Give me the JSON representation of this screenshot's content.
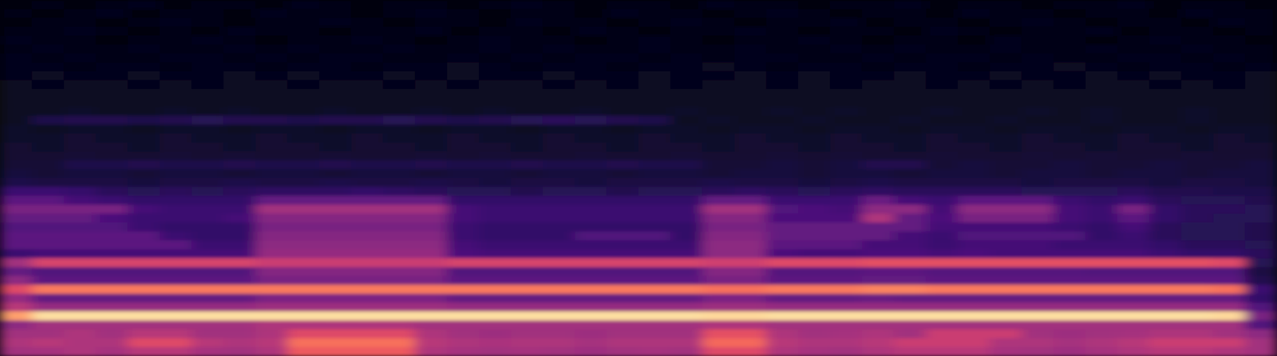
{
  "chart_data": {
    "type": "heatmap",
    "tick_labels": false,
    "zlim": [
      0,
      100
    ],
    "cells": [
      [
        3,
        4,
        3,
        4,
        5,
        3,
        4,
        4,
        3,
        5,
        4,
        3,
        4,
        4,
        3,
        4,
        5,
        4,
        3,
        4,
        4,
        3,
        5,
        4,
        4,
        3,
        4,
        4,
        5,
        3,
        4,
        4,
        3,
        4,
        4,
        5,
        3,
        4,
        4,
        3
      ],
      [
        4,
        3,
        4,
        5,
        3,
        4,
        4,
        3,
        5,
        4,
        4,
        3,
        4,
        5,
        4,
        3,
        4,
        4,
        3,
        5,
        4,
        4,
        3,
        4,
        5,
        4,
        3,
        4,
        4,
        3,
        5,
        4,
        4,
        3,
        4,
        4,
        3,
        5,
        4,
        4
      ],
      [
        3,
        4,
        4,
        3,
        4,
        5,
        4,
        3,
        4,
        4,
        5,
        4,
        3,
        4,
        4,
        3,
        5,
        4,
        4,
        3,
        4,
        5,
        4,
        3,
        4,
        4,
        5,
        3,
        4,
        4,
        3,
        4,
        5,
        4,
        3,
        4,
        4,
        3,
        5,
        4
      ],
      [
        4,
        4,
        5,
        4,
        3,
        4,
        3,
        5,
        4,
        4,
        3,
        4,
        4,
        5,
        3,
        4,
        4,
        3,
        5,
        4,
        3,
        4,
        4,
        5,
        4,
        3,
        4,
        4,
        3,
        5,
        4,
        3,
        4,
        4,
        5,
        3,
        4,
        4,
        3,
        4
      ],
      [
        5,
        4,
        4,
        3,
        4,
        4,
        5,
        4,
        3,
        4,
        4,
        5,
        4,
        3,
        4,
        5,
        4,
        4,
        3,
        4,
        5,
        4,
        3,
        4,
        4,
        5,
        4,
        3,
        4,
        4,
        3,
        5,
        4,
        4,
        3,
        4,
        5,
        4,
        4,
        3
      ],
      [
        4,
        5,
        4,
        4,
        5,
        4,
        4,
        5,
        4,
        5,
        4,
        4,
        5,
        4,
        4,
        5,
        4,
        5,
        4,
        4,
        5,
        4,
        4,
        5,
        4,
        4,
        5,
        4,
        5,
        4,
        4,
        5,
        4,
        4,
        5,
        4,
        4,
        5,
        4,
        4
      ],
      [
        5,
        4,
        5,
        4,
        4,
        5,
        5,
        4,
        5,
        4,
        5,
        5,
        4,
        4,
        5,
        4,
        5,
        4,
        5,
        5,
        4,
        5,
        4,
        5,
        5,
        4,
        4,
        5,
        4,
        5,
        5,
        4,
        5,
        4,
        4,
        5,
        5,
        4,
        5,
        4
      ],
      [
        5,
        5,
        4,
        5,
        5,
        4,
        5,
        5,
        4,
        5,
        5,
        4,
        5,
        5,
        6,
        5,
        4,
        5,
        5,
        4,
        5,
        5,
        6,
        5,
        4,
        5,
        5,
        4,
        5,
        5,
        4,
        5,
        5,
        6,
        5,
        4,
        5,
        5,
        4,
        5
      ],
      [
        5,
        6,
        5,
        5,
        6,
        5,
        5,
        6,
        5,
        6,
        5,
        5,
        6,
        5,
        6,
        5,
        5,
        6,
        5,
        5,
        6,
        5,
        5,
        6,
        5,
        6,
        5,
        5,
        6,
        5,
        5,
        6,
        5,
        5,
        6,
        5,
        6,
        5,
        5,
        6
      ],
      [
        6,
        5,
        6,
        6,
        5,
        6,
        5,
        6,
        6,
        5,
        6,
        6,
        5,
        6,
        5,
        6,
        6,
        5,
        6,
        5,
        6,
        5,
        6,
        6,
        5,
        6,
        5,
        6,
        6,
        5,
        6,
        5,
        6,
        5,
        6,
        6,
        5,
        6,
        5,
        6
      ],
      [
        6,
        6,
        7,
        6,
        6,
        7,
        6,
        6,
        7,
        6,
        7,
        6,
        6,
        7,
        6,
        6,
        7,
        6,
        7,
        6,
        6,
        7,
        6,
        6,
        7,
        6,
        7,
        6,
        6,
        7,
        6,
        6,
        7,
        6,
        7,
        6,
        6,
        7,
        6,
        6
      ],
      [
        7,
        6,
        7,
        7,
        6,
        7,
        7,
        6,
        7,
        7,
        6,
        7,
        7,
        6,
        7,
        7,
        6,
        7,
        7,
        6,
        7,
        7,
        6,
        7,
        7,
        6,
        7,
        7,
        6,
        7,
        7,
        6,
        7,
        7,
        6,
        7,
        7,
        6,
        7,
        7
      ],
      [
        7,
        7,
        8,
        7,
        7,
        8,
        7,
        8,
        7,
        7,
        8,
        7,
        7,
        8,
        7,
        8,
        7,
        7,
        8,
        7,
        7,
        8,
        7,
        7,
        8,
        7,
        8,
        7,
        7,
        8,
        7,
        7,
        8,
        7,
        8,
        7,
        7,
        8,
        7,
        7
      ],
      [
        7,
        13,
        14,
        14,
        13,
        14,
        15,
        14,
        14,
        13,
        14,
        14,
        15,
        14,
        13,
        14,
        15,
        16,
        15,
        14,
        13,
        7,
        8,
        7,
        7,
        8,
        7,
        7,
        8,
        7,
        7,
        8,
        7,
        7,
        8,
        7,
        7,
        8,
        7,
        7
      ],
      [
        8,
        7,
        8,
        8,
        7,
        8,
        8,
        7,
        8,
        8,
        7,
        8,
        8,
        7,
        8,
        8,
        7,
        8,
        8,
        7,
        8,
        8,
        7,
        8,
        8,
        7,
        8,
        8,
        7,
        8,
        8,
        7,
        8,
        8,
        7,
        8,
        8,
        7,
        8,
        8
      ],
      [
        8,
        8,
        9,
        8,
        8,
        9,
        8,
        8,
        9,
        8,
        8,
        9,
        8,
        8,
        9,
        8,
        8,
        9,
        8,
        8,
        9,
        8,
        8,
        9,
        8,
        8,
        9,
        8,
        8,
        9,
        8,
        8,
        9,
        8,
        8,
        9,
        8,
        8,
        9,
        8
      ],
      [
        9,
        8,
        9,
        9,
        8,
        9,
        9,
        8,
        9,
        9,
        8,
        9,
        9,
        8,
        9,
        9,
        8,
        9,
        9,
        8,
        9,
        9,
        8,
        9,
        9,
        8,
        9,
        9,
        8,
        9,
        9,
        8,
        9,
        9,
        8,
        9,
        9,
        8,
        9,
        9
      ],
      [
        9,
        9,
        10,
        9,
        9,
        10,
        9,
        10,
        9,
        9,
        10,
        9,
        9,
        10,
        9,
        10,
        9,
        9,
        10,
        9,
        9,
        10,
        9,
        9,
        10,
        9,
        10,
        9,
        9,
        10,
        9,
        9,
        10,
        9,
        10,
        9,
        9,
        10,
        9,
        9
      ],
      [
        10,
        10,
        13,
        13,
        14,
        13,
        13,
        14,
        13,
        13,
        14,
        13,
        13,
        14,
        13,
        13,
        14,
        13,
        13,
        14,
        13,
        13,
        10,
        10,
        11,
        10,
        11,
        14,
        14,
        10,
        11,
        10,
        10,
        11,
        10,
        10,
        11,
        10,
        10,
        11
      ],
      [
        11,
        10,
        11,
        11,
        10,
        11,
        11,
        10,
        11,
        11,
        10,
        11,
        11,
        10,
        11,
        11,
        10,
        11,
        11,
        10,
        11,
        11,
        10,
        11,
        11,
        10,
        11,
        11,
        10,
        11,
        11,
        10,
        11,
        11,
        10,
        11,
        11,
        10,
        11,
        11
      ],
      [
        13,
        12,
        12,
        12,
        11,
        12,
        12,
        13,
        12,
        12,
        13,
        12,
        12,
        13,
        12,
        11,
        12,
        12,
        11,
        12,
        12,
        12,
        13,
        12,
        12,
        11,
        12,
        13,
        12,
        12,
        12,
        12,
        11,
        12,
        12,
        12,
        11,
        12,
        12,
        11
      ],
      [
        20,
        20,
        19,
        16,
        15,
        16,
        15,
        16,
        17,
        17,
        17,
        18,
        17,
        16,
        15,
        15,
        14,
        15,
        15,
        14,
        15,
        15,
        16,
        17,
        16,
        15,
        16,
        17,
        16,
        16,
        16,
        16,
        15,
        15,
        15,
        16,
        14,
        14,
        13,
        13
      ],
      [
        28,
        28,
        22,
        20,
        18,
        18,
        18,
        18,
        30,
        30,
        30,
        30,
        30,
        30,
        18,
        18,
        18,
        18,
        18,
        18,
        18,
        18,
        30,
        30,
        20,
        20,
        20,
        32,
        22,
        20,
        28,
        28,
        28,
        20,
        18,
        20,
        16,
        15,
        15,
        14
      ],
      [
        35,
        35,
        35,
        35,
        22,
        20,
        20,
        20,
        45,
        45,
        45,
        45,
        45,
        45,
        22,
        20,
        20,
        20,
        20,
        20,
        20,
        20,
        45,
        45,
        25,
        24,
        22,
        40,
        40,
        22,
        40,
        40,
        40,
        22,
        20,
        35,
        18,
        16,
        16,
        15
      ],
      [
        30,
        30,
        30,
        24,
        20,
        20,
        20,
        22,
        38,
        38,
        38,
        38,
        38,
        38,
        22,
        20,
        20,
        20,
        20,
        20,
        20,
        20,
        38,
        38,
        24,
        24,
        24,
        48,
        30,
        24,
        35,
        35,
        35,
        22,
        20,
        28,
        18,
        16,
        15,
        15
      ],
      [
        25,
        25,
        25,
        25,
        20,
        18,
        18,
        18,
        35,
        35,
        35,
        35,
        35,
        35,
        20,
        18,
        18,
        18,
        18,
        18,
        18,
        18,
        35,
        35,
        30,
        30,
        30,
        30,
        30,
        22,
        22,
        22,
        22,
        20,
        18,
        22,
        16,
        15,
        15,
        14
      ],
      [
        28,
        28,
        28,
        28,
        28,
        20,
        18,
        18,
        38,
        38,
        38,
        38,
        38,
        38,
        20,
        18,
        18,
        18,
        25,
        25,
        25,
        18,
        38,
        38,
        30,
        30,
        30,
        30,
        22,
        20,
        25,
        25,
        25,
        25,
        18,
        20,
        16,
        15,
        15,
        14
      ],
      [
        28,
        28,
        28,
        28,
        28,
        28,
        20,
        20,
        40,
        40,
        40,
        40,
        40,
        40,
        22,
        20,
        20,
        20,
        20,
        20,
        20,
        20,
        40,
        40,
        28,
        28,
        28,
        22,
        22,
        20,
        22,
        22,
        22,
        20,
        20,
        20,
        18,
        16,
        16,
        15
      ],
      [
        20,
        22,
        22,
        22,
        22,
        22,
        22,
        22,
        42,
        42,
        42,
        42,
        42,
        42,
        24,
        22,
        22,
        22,
        22,
        22,
        22,
        22,
        40,
        40,
        24,
        22,
        22,
        24,
        24,
        22,
        24,
        22,
        22,
        22,
        22,
        22,
        20,
        18,
        18,
        16
      ],
      [
        45,
        58,
        58,
        58,
        58,
        58,
        58,
        58,
        55,
        55,
        55,
        55,
        55,
        55,
        58,
        58,
        58,
        58,
        58,
        58,
        58,
        58,
        56,
        56,
        60,
        60,
        60,
        62,
        62,
        62,
        62,
        62,
        62,
        62,
        62,
        62,
        62,
        62,
        60,
        15
      ],
      [
        30,
        25,
        25,
        25,
        25,
        25,
        25,
        25,
        38,
        38,
        38,
        38,
        38,
        38,
        25,
        25,
        25,
        25,
        25,
        25,
        25,
        25,
        38,
        38,
        26,
        26,
        26,
        28,
        28,
        26,
        26,
        26,
        26,
        26,
        25,
        25,
        25,
        25,
        25,
        12
      ],
      [
        40,
        28,
        28,
        28,
        28,
        28,
        28,
        28,
        35,
        35,
        35,
        35,
        35,
        35,
        28,
        28,
        28,
        28,
        28,
        28,
        28,
        28,
        35,
        35,
        28,
        28,
        28,
        30,
        30,
        28,
        28,
        28,
        28,
        28,
        28,
        28,
        28,
        28,
        28,
        14
      ],
      [
        60,
        72,
        72,
        72,
        72,
        72,
        72,
        72,
        72,
        72,
        72,
        72,
        72,
        72,
        72,
        72,
        72,
        72,
        72,
        72,
        72,
        72,
        70,
        70,
        72,
        72,
        72,
        74,
        74,
        72,
        72,
        72,
        72,
        72,
        72,
        72,
        72,
        72,
        70,
        20
      ],
      [
        42,
        30,
        30,
        30,
        30,
        30,
        30,
        30,
        36,
        36,
        36,
        36,
        36,
        36,
        30,
        30,
        30,
        30,
        30,
        30,
        30,
        30,
        36,
        36,
        30,
        30,
        30,
        32,
        30,
        30,
        30,
        30,
        30,
        30,
        30,
        30,
        30,
        30,
        30,
        18
      ],
      [
        50,
        42,
        42,
        42,
        42,
        42,
        42,
        42,
        44,
        44,
        44,
        44,
        44,
        44,
        42,
        42,
        42,
        42,
        42,
        42,
        42,
        42,
        44,
        44,
        42,
        42,
        42,
        42,
        42,
        42,
        42,
        42,
        42,
        42,
        42,
        42,
        42,
        42,
        42,
        25
      ],
      [
        80,
        93,
        93,
        93,
        93,
        93,
        93,
        93,
        93,
        93,
        93,
        93,
        93,
        93,
        93,
        93,
        93,
        93,
        93,
        93,
        93,
        93,
        92,
        92,
        93,
        93,
        93,
        93,
        93,
        93,
        93,
        93,
        93,
        93,
        93,
        93,
        93,
        93,
        92,
        35
      ],
      [
        40,
        45,
        45,
        45,
        45,
        45,
        45,
        45,
        48,
        48,
        48,
        48,
        48,
        45,
        45,
        45,
        45,
        45,
        45,
        45,
        45,
        45,
        48,
        48,
        45,
        45,
        45,
        45,
        45,
        45,
        45,
        45,
        45,
        45,
        45,
        45,
        45,
        45,
        45,
        25
      ],
      [
        45,
        45,
        48,
        45,
        50,
        50,
        45,
        45,
        48,
        60,
        60,
        60,
        60,
        48,
        45,
        44,
        45,
        45,
        44,
        45,
        45,
        45,
        62,
        62,
        48,
        45,
        46,
        48,
        45,
        55,
        55,
        55,
        45,
        44,
        45,
        46,
        48,
        48,
        45,
        40
      ],
      [
        48,
        50,
        48,
        48,
        60,
        60,
        50,
        48,
        50,
        70,
        70,
        70,
        70,
        50,
        48,
        47,
        48,
        48,
        46,
        48,
        48,
        48,
        68,
        68,
        50,
        48,
        48,
        50,
        55,
        55,
        55,
        48,
        48,
        46,
        48,
        50,
        55,
        55,
        55,
        45
      ],
      [
        45,
        46,
        48,
        46,
        50,
        50,
        46,
        45,
        48,
        65,
        65,
        65,
        65,
        48,
        46,
        45,
        46,
        45,
        44,
        45,
        46,
        45,
        60,
        60,
        48,
        46,
        45,
        48,
        50,
        50,
        50,
        46,
        45,
        44,
        46,
        48,
        50,
        50,
        48,
        45
      ]
    ]
  }
}
